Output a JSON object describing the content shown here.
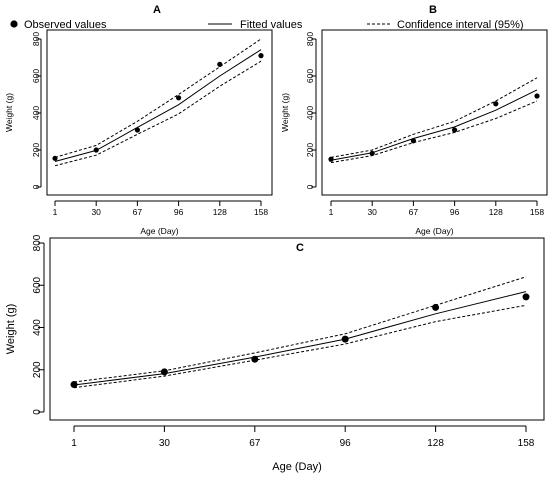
{
  "legend": {
    "observed": "Observed values",
    "fitted": "Fitted values",
    "ci": "Confidence interval (95%)"
  },
  "chart_data": [
    {
      "panel": "A",
      "type": "line",
      "xlabel": "Age (Day)",
      "ylabel": "Weight (g)",
      "x": [
        1,
        30,
        67,
        96,
        128,
        158
      ],
      "xticks": [
        "1",
        "30",
        "67",
        "96",
        "128",
        "158"
      ],
      "yticks": [
        0,
        200,
        400,
        600,
        800
      ],
      "ylim": [
        0,
        800
      ],
      "series": [
        {
          "name": "Observed values",
          "kind": "points",
          "values": [
            155,
            200,
            308,
            482,
            663,
            710
          ]
        },
        {
          "name": "Fitted values",
          "kind": "solid",
          "values": [
            138,
            198,
            322,
            445,
            600,
            742
          ]
        },
        {
          "name": "Confidence interval (95%)",
          "kind": "dashed-upper",
          "values": [
            160,
            225,
            355,
            500,
            650,
            800
          ]
        },
        {
          "name": "Confidence interval (95%)",
          "kind": "dashed-lower",
          "values": [
            115,
            172,
            285,
            395,
            545,
            680
          ]
        }
      ]
    },
    {
      "panel": "B",
      "type": "line",
      "xlabel": "Age (Day)",
      "ylabel": "Weight (g)",
      "x": [
        1,
        30,
        67,
        96,
        128,
        158
      ],
      "xticks": [
        "1",
        "30",
        "67",
        "96",
        "128",
        "158"
      ],
      "yticks": [
        0,
        200,
        400,
        600,
        800
      ],
      "ylim": [
        0,
        800
      ],
      "series": [
        {
          "name": "Observed values",
          "kind": "points",
          "values": [
            150,
            182,
            250,
            308,
            450,
            492
          ]
        },
        {
          "name": "Fitted values",
          "kind": "solid",
          "values": [
            145,
            185,
            262,
            325,
            415,
            525
          ]
        },
        {
          "name": "Confidence interval (95%)",
          "kind": "dashed-upper",
          "values": [
            160,
            200,
            285,
            355,
            465,
            590
          ]
        },
        {
          "name": "Confidence interval (95%)",
          "kind": "dashed-lower",
          "values": [
            132,
            170,
            240,
            295,
            370,
            465
          ]
        }
      ]
    },
    {
      "panel": "C",
      "type": "line",
      "xlabel": "Age (Day)",
      "ylabel": "Weight (g)",
      "x": [
        1,
        30,
        67,
        96,
        128,
        158
      ],
      "xticks": [
        "1",
        "30",
        "67",
        "96",
        "128",
        "158"
      ],
      "yticks": [
        0,
        200,
        400,
        600,
        800
      ],
      "ylim": [
        0,
        800
      ],
      "series": [
        {
          "name": "Observed values",
          "kind": "points",
          "values": [
            130,
            190,
            250,
            345,
            495,
            545
          ]
        },
        {
          "name": "Fitted values",
          "kind": "solid",
          "values": [
            128,
            182,
            260,
            345,
            465,
            570
          ]
        },
        {
          "name": "Confidence interval (95%)",
          "kind": "dashed-upper",
          "values": [
            142,
            195,
            280,
            370,
            505,
            640
          ]
        },
        {
          "name": "Confidence interval (95%)",
          "kind": "dashed-lower",
          "values": [
            115,
            170,
            245,
            322,
            428,
            505
          ]
        }
      ]
    }
  ]
}
